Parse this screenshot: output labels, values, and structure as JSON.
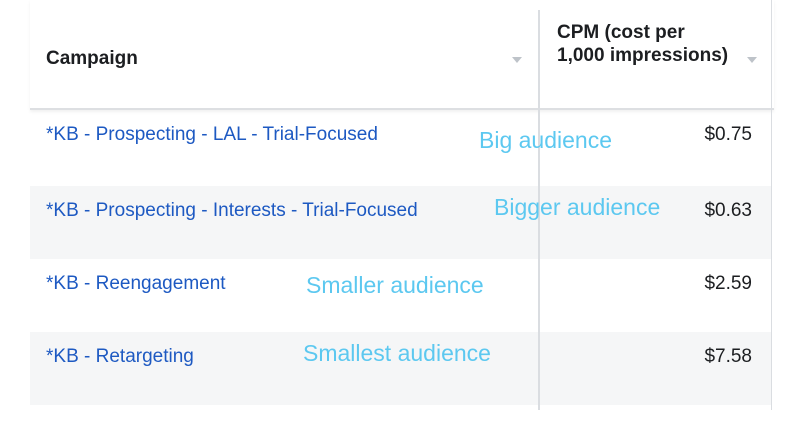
{
  "table": {
    "columns": [
      {
        "label": "Campaign"
      },
      {
        "label": "CPM (cost per 1,000 impressions)"
      }
    ],
    "rows": [
      {
        "campaign": "*KB - Prospecting - LAL - Trial-Focused",
        "cpm": "$0.75",
        "note": "Big audience"
      },
      {
        "campaign": "*KB - Prospecting - Interests - Trial-Focused",
        "cpm": "$0.63",
        "note": "Bigger audience"
      },
      {
        "campaign": "*KB - Reengagement",
        "cpm": "$2.59",
        "note": "Smaller audience"
      },
      {
        "campaign": "*KB - Retargeting",
        "cpm": "$7.58",
        "note": "Smallest audience"
      }
    ]
  },
  "colors": {
    "link": "#1d59c2",
    "annotation": "#5cc8f0",
    "alt_row": "#f5f6f7",
    "divider": "#dadde1"
  },
  "icons": [
    "sort-caret-icon"
  ]
}
